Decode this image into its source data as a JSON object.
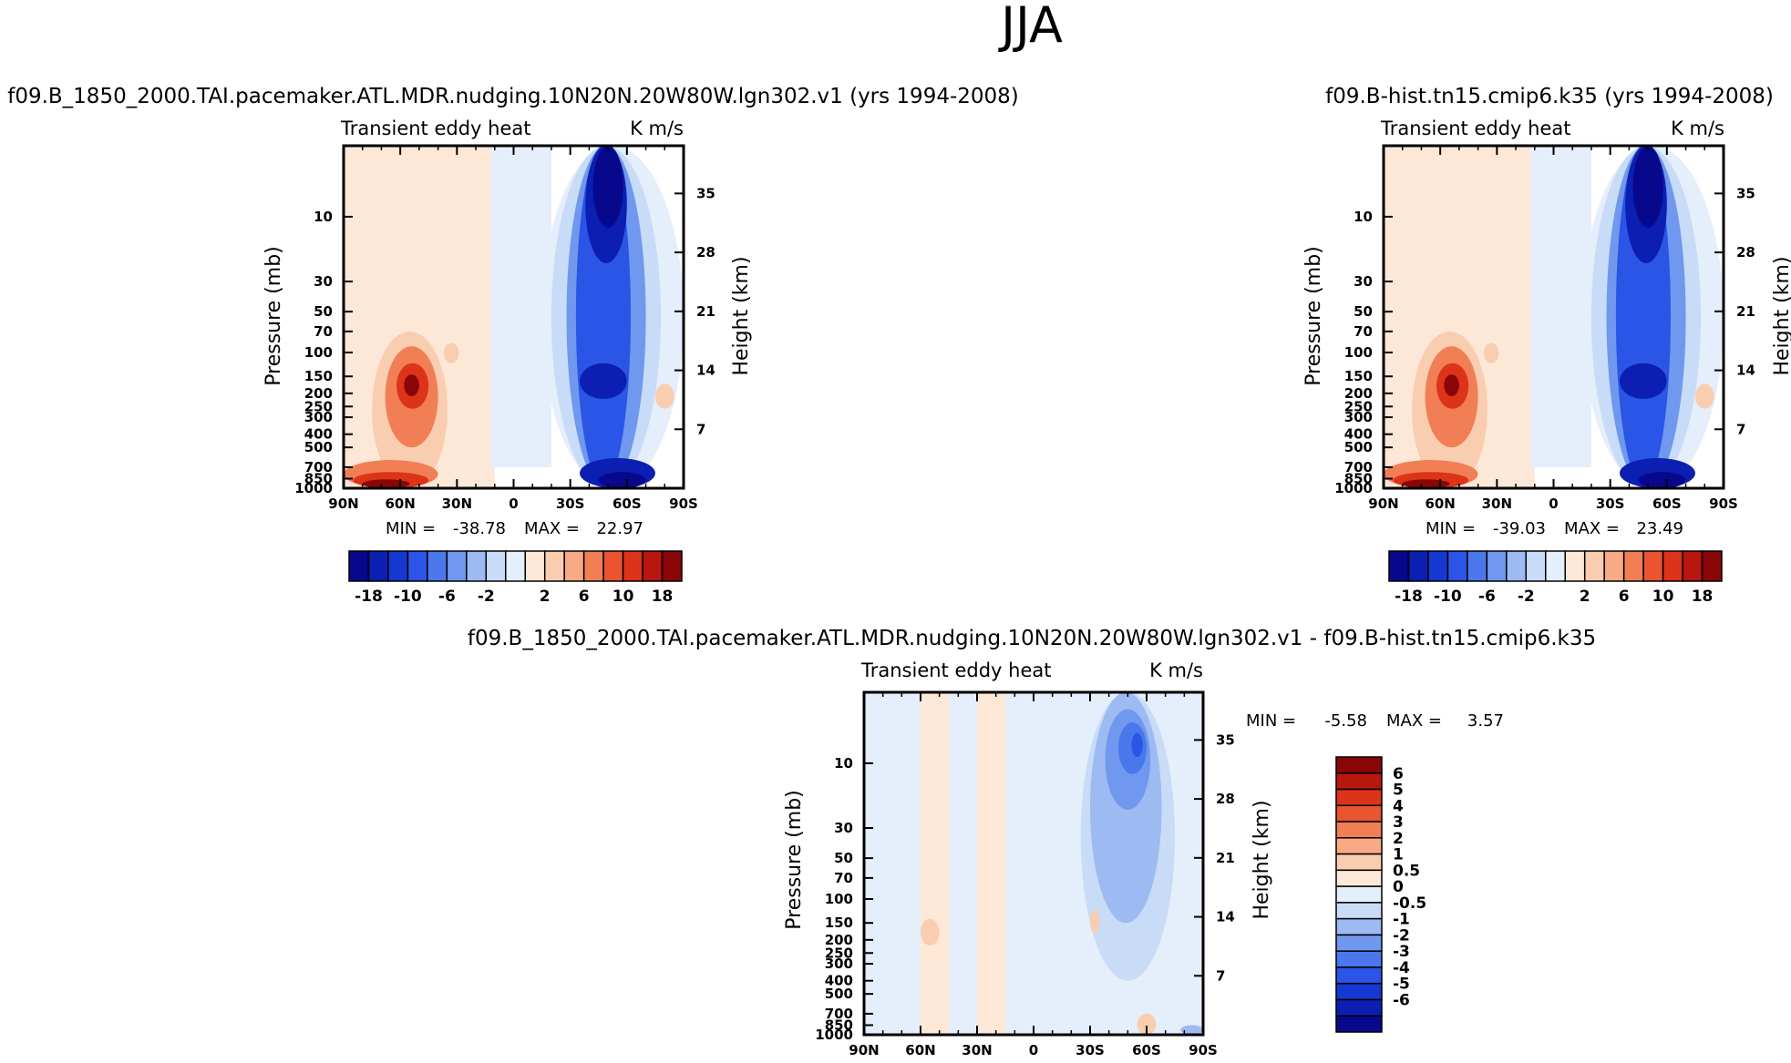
{
  "figure_title": "JJA",
  "colors": {
    "neg": [
      "#08088c",
      "#0b1fb2",
      "#1638d2",
      "#2a55e6",
      "#4a78ec",
      "#6f98ee",
      "#9dbbf2",
      "#c8dbf7",
      "#e5eefb"
    ],
    "pos": [
      "#fde8d8",
      "#f9cdb0",
      "#f7aa84",
      "#f27e55",
      "#ea5430",
      "#dc3419",
      "#b8170e",
      "#8a0606"
    ]
  },
  "chart_data": [
    {
      "id": "panel-left",
      "type": "heatmap",
      "title": "f09.B_1850_2000.TAI.pacemaker.ATL.MDR.nudging.10N20N.20W80W.lgn302.v1 (yrs 1994-2008)",
      "variable_label": "Transient eddy heat",
      "units": "K m/s",
      "xlabel": "",
      "ylabel": "Pressure (mb)",
      "ylabel_right": "Height (km)",
      "x_ticks": [
        "90N",
        "60N",
        "30N",
        "0",
        "30S",
        "60S",
        "90S"
      ],
      "xlim": [
        90,
        -90
      ],
      "y_ticks": [
        "10",
        "30",
        "50",
        "70",
        "100",
        "150",
        "200",
        "250",
        "300",
        "400",
        "500",
        "700",
        "850",
        "1000"
      ],
      "ylim": [
        1000,
        3
      ],
      "y_right_ticks": [
        "7",
        "14",
        "21",
        "28",
        "35"
      ],
      "stats": {
        "min_label": "MIN =",
        "min": "-38.78",
        "max_label": "MAX =",
        "max": "22.97"
      },
      "colorbar_labels": [
        "-18",
        "-10",
        "-6",
        "-2",
        "2",
        "6",
        "10",
        "18"
      ],
      "features": [
        {
          "lat": 90,
          "p": 3,
          "lat2": 70,
          "p2": 6,
          "value": -0.6
        },
        {
          "lat": 90,
          "p": 3,
          "lat2": 10,
          "p2": 1000,
          "value": 0.8
        },
        {
          "lat": 12,
          "p": 3,
          "lat2": -20,
          "p2": 700,
          "value": -1.5
        },
        {
          "lat": -15,
          "p": 3,
          "lat2": -90,
          "p2": 1000,
          "value": -1.5
        },
        {
          "lat": -20,
          "p": 3,
          "lat2": -78,
          "p2": 1000,
          "value": -3
        },
        {
          "lat": -28,
          "p": 3,
          "lat2": -70,
          "p2": 1000,
          "value": -7
        },
        {
          "lat": -33,
          "p": 3,
          "lat2": -62,
          "p2": 950,
          "value": -12
        },
        {
          "lat": -38,
          "p": 3,
          "lat2": -60,
          "p2": 22,
          "value": -20
        },
        {
          "lat": -42,
          "p": 3,
          "lat2": -58,
          "p2": 12,
          "value": -30
        },
        {
          "lat": -35,
          "p": 120,
          "lat2": -60,
          "p2": 220,
          "value": -20
        },
        {
          "lat": -35,
          "p": 600,
          "lat2": -75,
          "p2": 1000,
          "value": -20
        },
        {
          "lat": -45,
          "p": 760,
          "lat2": -70,
          "p2": 1000,
          "value": -30
        },
        {
          "lat": -75,
          "p": 170,
          "lat2": -85,
          "p2": 260,
          "value": 3
        },
        {
          "lat": 85,
          "p": 420,
          "lat2": 45,
          "p2": 1000,
          "value": 1.5
        },
        {
          "lat": 75,
          "p": 70,
          "lat2": 35,
          "p2": 1000,
          "value": 3
        },
        {
          "lat": 68,
          "p": 90,
          "lat2": 40,
          "p2": 500,
          "value": 7
        },
        {
          "lat": 62,
          "p": 120,
          "lat2": 45,
          "p2": 260,
          "value": 12
        },
        {
          "lat": 58,
          "p": 145,
          "lat2": 50,
          "p2": 210,
          "value": 20
        },
        {
          "lat": 90,
          "p": 620,
          "lat2": 40,
          "p2": 1000,
          "value": 7
        },
        {
          "lat": 85,
          "p": 760,
          "lat2": 45,
          "p2": 1000,
          "value": 12
        },
        {
          "lat": 80,
          "p": 860,
          "lat2": 55,
          "p2": 1000,
          "value": 20
        },
        {
          "lat": 37,
          "p": 85,
          "lat2": 29,
          "p2": 120,
          "value": 3
        }
      ]
    },
    {
      "id": "panel-right",
      "type": "heatmap",
      "title": "f09.B-hist.tn15.cmip6.k35 (yrs 1994-2008)",
      "variable_label": "Transient eddy heat",
      "units": "K m/s",
      "xlabel": "",
      "ylabel": "Pressure (mb)",
      "ylabel_right": "Height (km)",
      "x_ticks": [
        "90N",
        "60N",
        "30N",
        "0",
        "30S",
        "60S",
        "90S"
      ],
      "xlim": [
        90,
        -90
      ],
      "y_ticks": [
        "10",
        "30",
        "50",
        "70",
        "100",
        "150",
        "200",
        "250",
        "300",
        "400",
        "500",
        "700",
        "850",
        "1000"
      ],
      "ylim": [
        1000,
        3
      ],
      "y_right_ticks": [
        "7",
        "14",
        "21",
        "28",
        "35"
      ],
      "stats": {
        "min_label": "MIN =",
        "min": "-39.03",
        "max_label": "MAX =",
        "max": "23.49"
      },
      "colorbar_labels": [
        "-18",
        "-10",
        "-6",
        "-2",
        "2",
        "6",
        "10",
        "18"
      ],
      "features": [
        {
          "lat": 90,
          "p": 3,
          "lat2": 70,
          "p2": 6,
          "value": -0.6
        },
        {
          "lat": 90,
          "p": 3,
          "lat2": 10,
          "p2": 1000,
          "value": 0.8
        },
        {
          "lat": 12,
          "p": 3,
          "lat2": -20,
          "p2": 700,
          "value": -1.5
        },
        {
          "lat": -15,
          "p": 3,
          "lat2": -90,
          "p2": 1000,
          "value": -1.5
        },
        {
          "lat": -20,
          "p": 3,
          "lat2": -78,
          "p2": 1000,
          "value": -3
        },
        {
          "lat": -28,
          "p": 3,
          "lat2": -70,
          "p2": 1000,
          "value": -7
        },
        {
          "lat": -33,
          "p": 3,
          "lat2": -62,
          "p2": 950,
          "value": -12
        },
        {
          "lat": -38,
          "p": 3,
          "lat2": -60,
          "p2": 22,
          "value": -20
        },
        {
          "lat": -42,
          "p": 3,
          "lat2": -58,
          "p2": 12,
          "value": -30
        },
        {
          "lat": -35,
          "p": 120,
          "lat2": -60,
          "p2": 220,
          "value": -20
        },
        {
          "lat": -35,
          "p": 600,
          "lat2": -75,
          "p2": 1000,
          "value": -20
        },
        {
          "lat": -45,
          "p": 760,
          "lat2": -70,
          "p2": 1000,
          "value": -30
        },
        {
          "lat": -75,
          "p": 170,
          "lat2": -85,
          "p2": 260,
          "value": 3
        },
        {
          "lat": 85,
          "p": 420,
          "lat2": 45,
          "p2": 1000,
          "value": 1.5
        },
        {
          "lat": 75,
          "p": 70,
          "lat2": 35,
          "p2": 1000,
          "value": 3
        },
        {
          "lat": 68,
          "p": 90,
          "lat2": 40,
          "p2": 500,
          "value": 7
        },
        {
          "lat": 62,
          "p": 120,
          "lat2": 45,
          "p2": 260,
          "value": 12
        },
        {
          "lat": 58,
          "p": 145,
          "lat2": 50,
          "p2": 210,
          "value": 20
        },
        {
          "lat": 90,
          "p": 620,
          "lat2": 40,
          "p2": 1000,
          "value": 7
        },
        {
          "lat": 85,
          "p": 760,
          "lat2": 45,
          "p2": 1000,
          "value": 12
        },
        {
          "lat": 80,
          "p": 860,
          "lat2": 55,
          "p2": 1000,
          "value": 20
        },
        {
          "lat": 37,
          "p": 85,
          "lat2": 29,
          "p2": 120,
          "value": 3
        }
      ]
    },
    {
      "id": "panel-diff",
      "type": "heatmap",
      "title": "f09.B_1850_2000.TAI.pacemaker.ATL.MDR.nudging.10N20N.20W80W.lgn302.v1 - f09.B-hist.tn15.cmip6.k35",
      "variable_label": "Transient eddy heat",
      "units": "K m/s",
      "xlabel": "",
      "ylabel": "Pressure (mb)",
      "ylabel_right": "Height (km)",
      "x_ticks": [
        "90N",
        "60N",
        "30N",
        "0",
        "30S",
        "60S",
        "90S"
      ],
      "xlim": [
        90,
        -90
      ],
      "y_ticks": [
        "10",
        "30",
        "50",
        "70",
        "100",
        "150",
        "200",
        "250",
        "300",
        "400",
        "500",
        "700",
        "850",
        "1000"
      ],
      "ylim": [
        1000,
        3
      ],
      "y_right_ticks": [
        "7",
        "14",
        "21",
        "28",
        "35"
      ],
      "stats": {
        "min_label": "MIN =",
        "min": "-5.58",
        "max_label": "MAX =",
        "max": "3.57"
      },
      "colorbar_labels": [
        "6",
        "5",
        "4",
        "3",
        "2",
        "1",
        "0.5",
        "0",
        "-0.5",
        "-1",
        "-2",
        "-3",
        "-4",
        "-5",
        "-6"
      ],
      "features": [
        {
          "lat": 90,
          "p": 3,
          "lat2": 60,
          "p2": 1000,
          "value": -0.25
        },
        {
          "lat": 60,
          "p": 3,
          "lat2": 45,
          "p2": 1000,
          "value": 0.25
        },
        {
          "lat": 45,
          "p": 3,
          "lat2": 30,
          "p2": 1000,
          "value": -0.25
        },
        {
          "lat": 30,
          "p": 3,
          "lat2": 15,
          "p2": 1000,
          "value": 0.25
        },
        {
          "lat": 15,
          "p": 3,
          "lat2": -90,
          "p2": 1000,
          "value": -0.25
        },
        {
          "lat": -25,
          "p": 3,
          "lat2": -75,
          "p2": 400,
          "value": -0.75
        },
        {
          "lat": -30,
          "p": 3,
          "lat2": -68,
          "p2": 150,
          "value": -1.5
        },
        {
          "lat": -38,
          "p": 4,
          "lat2": -62,
          "p2": 22,
          "value": -2.5
        },
        {
          "lat": -45,
          "p": 5,
          "lat2": -60,
          "p2": 12,
          "value": -3.5
        },
        {
          "lat": -52,
          "p": 6,
          "lat2": -58,
          "p2": 9,
          "value": -4.5
        },
        {
          "lat": 60,
          "p": 140,
          "lat2": 50,
          "p2": 220,
          "value": 0.75
        },
        {
          "lat": -30,
          "p": 120,
          "lat2": -35,
          "p2": 180,
          "value": 0.75
        },
        {
          "lat": -55,
          "p": 700,
          "lat2": -65,
          "p2": 1000,
          "value": 0.75
        },
        {
          "lat": -78,
          "p": 850,
          "lat2": -90,
          "p2": 1000,
          "value": -1.5
        }
      ]
    }
  ]
}
